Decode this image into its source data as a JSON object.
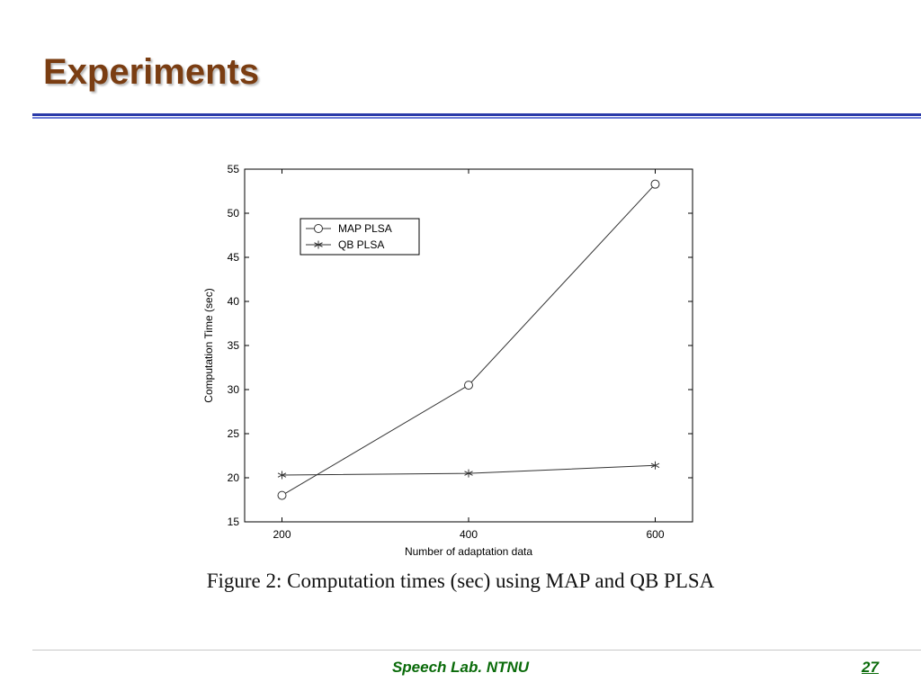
{
  "slide": {
    "title": "Experiments",
    "caption": "Figure 2: Computation times (sec) using MAP and QB PLSA",
    "footer": "Speech Lab. NTNU",
    "page_number": "27"
  },
  "colors": {
    "title": "#7a3d12",
    "rule": "#2a3aa8",
    "footer": "#0a6b0a",
    "series": "#333333"
  },
  "chart_data": {
    "type": "line",
    "title": "",
    "xlabel": "Number of adaptation data",
    "ylabel": "Computation Time (sec)",
    "x": [
      200,
      400,
      600
    ],
    "xlim": [
      160,
      640
    ],
    "ylim": [
      15,
      55
    ],
    "xticks": [
      200,
      400,
      600
    ],
    "yticks": [
      15,
      20,
      25,
      30,
      35,
      40,
      45,
      50,
      55
    ],
    "grid": false,
    "legend_position": "top-left",
    "series": [
      {
        "name": "MAP PLSA",
        "marker": "circle",
        "values": [
          18.0,
          30.5,
          53.3
        ]
      },
      {
        "name": "QB PLSA",
        "marker": "star",
        "values": [
          20.3,
          20.5,
          21.4
        ]
      }
    ]
  }
}
